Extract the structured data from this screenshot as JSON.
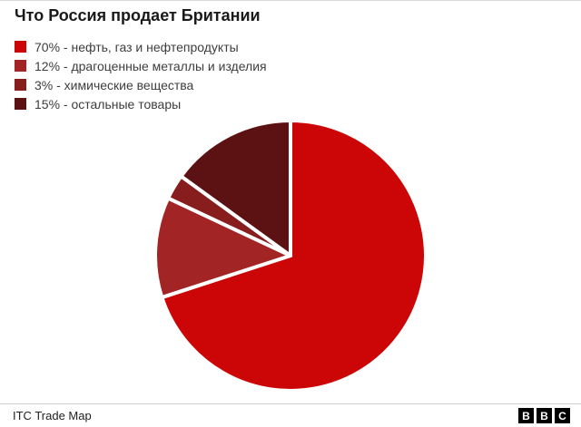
{
  "title": "Что Россия продает Британии",
  "legend": [
    {
      "label": "70% - нефть, газ и нефтепродукты"
    },
    {
      "label": "12% - драгоценные металлы и изделия"
    },
    {
      "label": "3% - химические вещества"
    },
    {
      "label": "15% - остальные товары"
    }
  ],
  "chart_data": {
    "type": "pie",
    "title": "Что Россия продает Британии",
    "slices": [
      {
        "label": "нефть, газ и нефтепродукты",
        "value": 70,
        "color": "#cc0606"
      },
      {
        "label": "драгоценные металлы и изделия",
        "value": 12,
        "color": "#a32424"
      },
      {
        "label": "химические вещества",
        "value": 3,
        "color": "#871d1d"
      },
      {
        "label": "остальные товары",
        "value": 15,
        "color": "#5c1212"
      }
    ],
    "start_angle_deg": -90,
    "direction": "clockwise",
    "legend_position": "top-left",
    "slice_border_color": "#ffffff"
  },
  "footer": {
    "source": "ITC Trade Map",
    "logo_letters": [
      "B",
      "B",
      "C"
    ]
  }
}
